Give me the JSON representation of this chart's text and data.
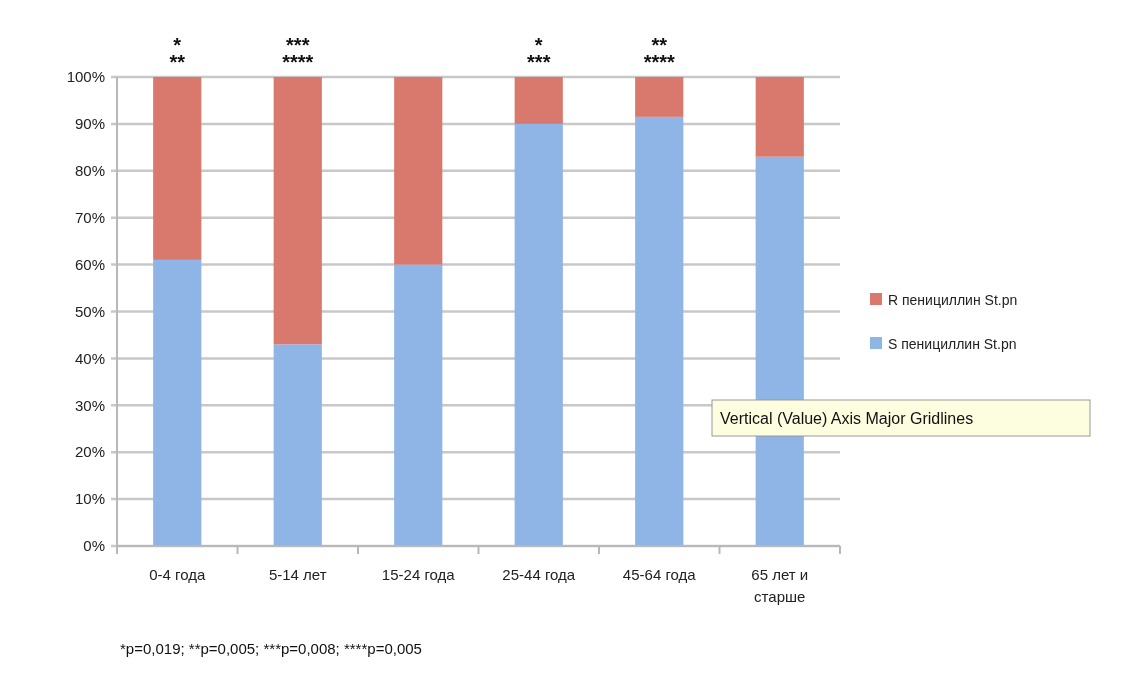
{
  "chart_data": {
    "type": "bar",
    "stacked": true,
    "categories": [
      "0-4 года",
      "5-14 лет",
      "15-24 года",
      "25-44 года",
      "45-64 года",
      "65 лет и старше"
    ],
    "series": [
      {
        "name": "S пенициллин St.pn",
        "color": "#8fb4e6",
        "values": [
          61,
          43,
          60,
          90,
          91.5,
          83
        ]
      },
      {
        "name": "R пенициллин St.pn",
        "color": "#d9796e",
        "values": [
          39,
          57,
          40,
          10,
          8.5,
          17
        ]
      }
    ],
    "ylim": [
      0,
      100
    ],
    "yticks": [
      {
        "value": 0,
        "label": "0%"
      },
      {
        "value": 10,
        "label": "10%"
      },
      {
        "value": 20,
        "label": "20%"
      },
      {
        "value": 30,
        "label": "30%"
      },
      {
        "value": 40,
        "label": "40%"
      },
      {
        "value": 50,
        "label": "50%"
      },
      {
        "value": 60,
        "label": "60%"
      },
      {
        "value": 70,
        "label": "70%"
      },
      {
        "value": 80,
        "label": "80%"
      },
      {
        "value": 90,
        "label": "90%"
      },
      {
        "value": 100,
        "label": "100%"
      }
    ],
    "grid": "y",
    "legend": "right",
    "annotations": [
      {
        "text": "*",
        "x": "0-4 года",
        "y": 100
      },
      {
        "text": "**",
        "x": "0-4 года",
        "y": 100
      },
      {
        "text": "***",
        "x": "5-14 лет",
        "y": 100
      },
      {
        "text": "****",
        "x": "5-14 лет",
        "y": 100
      },
      {
        "text": "*",
        "x": "25-44 года",
        "y": 100
      },
      {
        "text": "***",
        "x": "25-44 года",
        "y": 100
      },
      {
        "text": "**",
        "x": "45-64 года",
        "y": 100
      },
      {
        "text": "****",
        "x": "45-64 года",
        "y": 100
      },
      "*p=0,019;  **p=0,005; ***p=0,008; ****p=0,005",
      "Vertical (Value) Axis Major Gridlines"
    ]
  }
}
